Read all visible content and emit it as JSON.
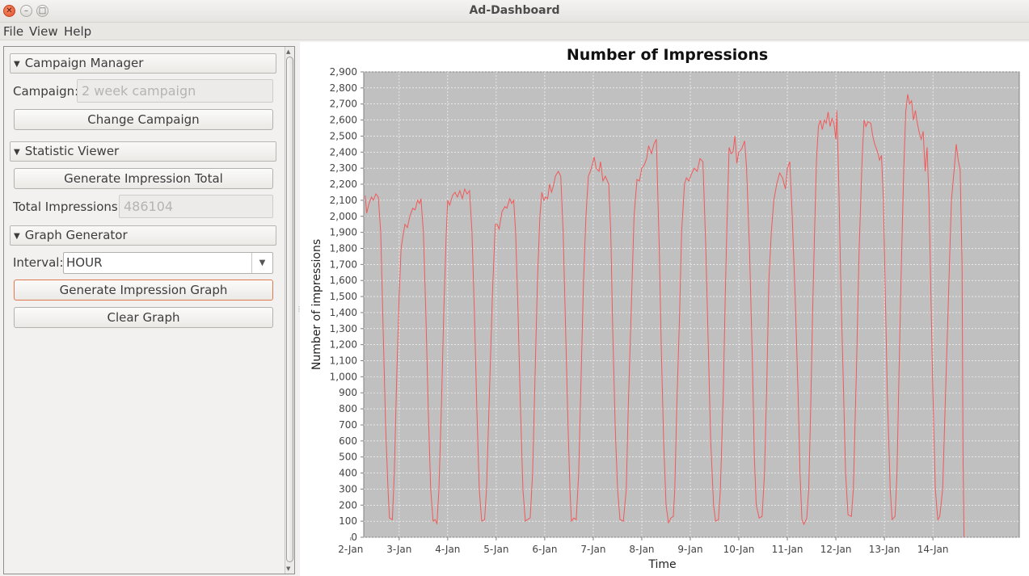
{
  "window": {
    "title": "Ad-Dashboard",
    "close_glyph": "✕",
    "min_glyph": "–",
    "max_glyph": "□"
  },
  "menu": [
    "File",
    "View",
    "Help"
  ],
  "campaign_manager": {
    "header": "Campaign Manager",
    "campaign_label": "Campaign:",
    "campaign_value": "2 week campaign",
    "change_button": "Change Campaign"
  },
  "statistic_viewer": {
    "header": "Statistic Viewer",
    "generate_button": "Generate Impression Total",
    "total_label": "Total Impressions:",
    "total_value": "486104"
  },
  "graph_generator": {
    "header": "Graph Generator",
    "interval_label": "Interval:",
    "interval_value": "HOUR",
    "generate_button": "Generate Impression Graph",
    "clear_button": "Clear Graph"
  },
  "colors": {
    "line": "#f05a5a",
    "plot_bg": "#c0c0c0",
    "grid": "#ffffff",
    "focus": "#e0794f"
  },
  "chart_data": {
    "type": "line",
    "title": "Number of Impressions",
    "xlabel": "Time",
    "ylabel": "Number of impressions",
    "ylim": [
      0,
      2900
    ],
    "ytick_step": 100,
    "x_unit": "day",
    "x_start_tick": "2-Jan",
    "xlim_days": [
      1.27,
      14.78
    ],
    "x_tick_labels": [
      "2-Jan",
      "3-Jan",
      "4-Jan",
      "5-Jan",
      "6-Jan",
      "7-Jan",
      "8-Jan",
      "9-Jan",
      "10-Jan",
      "11-Jan",
      "12-Jan",
      "13-Jan",
      "14-Jan"
    ],
    "grid": true,
    "legend": "none",
    "series": [
      {
        "values": [
          [
            1.3,
            2130
          ],
          [
            1.33,
            2020
          ],
          [
            1.38,
            2080
          ],
          [
            1.43,
            2120
          ],
          [
            1.47,
            2100
          ],
          [
            1.52,
            2140
          ],
          [
            1.57,
            2120
          ],
          [
            1.62,
            1900
          ],
          [
            1.67,
            1300
          ],
          [
            1.72,
            700
          ],
          [
            1.77,
            300
          ],
          [
            1.8,
            120
          ],
          [
            1.86,
            110
          ],
          [
            1.9,
            400
          ],
          [
            1.95,
            1000
          ],
          [
            2.0,
            1500
          ],
          [
            2.04,
            1800
          ],
          [
            2.08,
            1880
          ],
          [
            2.12,
            1950
          ],
          [
            2.17,
            1930
          ],
          [
            2.22,
            2000
          ],
          [
            2.28,
            2050
          ],
          [
            2.33,
            2040
          ],
          [
            2.38,
            2100
          ],
          [
            2.42,
            2080
          ],
          [
            2.45,
            2110
          ],
          [
            2.5,
            1900
          ],
          [
            2.55,
            1400
          ],
          [
            2.6,
            800
          ],
          [
            2.65,
            300
          ],
          [
            2.7,
            100
          ],
          [
            2.74,
            110
          ],
          [
            2.78,
            85
          ],
          [
            2.82,
            300
          ],
          [
            2.87,
            800
          ],
          [
            2.92,
            1400
          ],
          [
            2.97,
            1900
          ],
          [
            3.0,
            2100
          ],
          [
            3.04,
            2070
          ],
          [
            3.1,
            2130
          ],
          [
            3.15,
            2150
          ],
          [
            3.2,
            2120
          ],
          [
            3.25,
            2160
          ],
          [
            3.3,
            2110
          ],
          [
            3.35,
            2170
          ],
          [
            3.4,
            2140
          ],
          [
            3.45,
            2160
          ],
          [
            3.5,
            1900
          ],
          [
            3.55,
            1400
          ],
          [
            3.6,
            800
          ],
          [
            3.65,
            300
          ],
          [
            3.7,
            100
          ],
          [
            3.76,
            110
          ],
          [
            3.8,
            300
          ],
          [
            3.85,
            800
          ],
          [
            3.92,
            1500
          ],
          [
            3.98,
            1950
          ],
          [
            4.02,
            1950
          ],
          [
            4.06,
            1920
          ],
          [
            4.12,
            2030
          ],
          [
            4.18,
            2060
          ],
          [
            4.22,
            2050
          ],
          [
            4.28,
            2110
          ],
          [
            4.32,
            2080
          ],
          [
            4.36,
            2100
          ],
          [
            4.4,
            1900
          ],
          [
            4.45,
            1400
          ],
          [
            4.5,
            800
          ],
          [
            4.55,
            300
          ],
          [
            4.6,
            100
          ],
          [
            4.64,
            110
          ],
          [
            4.7,
            120
          ],
          [
            4.75,
            400
          ],
          [
            4.8,
            1000
          ],
          [
            4.85,
            1600
          ],
          [
            4.9,
            2000
          ],
          [
            4.94,
            2150
          ],
          [
            4.98,
            2100
          ],
          [
            5.02,
            2120
          ],
          [
            5.06,
            2110
          ],
          [
            5.1,
            2200
          ],
          [
            5.14,
            2150
          ],
          [
            5.18,
            2190
          ],
          [
            5.22,
            2250
          ],
          [
            5.28,
            2280
          ],
          [
            5.33,
            2250
          ],
          [
            5.38,
            1900
          ],
          [
            5.43,
            1300
          ],
          [
            5.48,
            700
          ],
          [
            5.52,
            300
          ],
          [
            5.55,
            100
          ],
          [
            5.6,
            120
          ],
          [
            5.65,
            110
          ],
          [
            5.7,
            400
          ],
          [
            5.75,
            1000
          ],
          [
            5.8,
            1600
          ],
          [
            5.85,
            2000
          ],
          [
            5.9,
            2250
          ],
          [
            5.94,
            2280
          ],
          [
            5.98,
            2320
          ],
          [
            6.02,
            2370
          ],
          [
            6.06,
            2300
          ],
          [
            6.12,
            2280
          ],
          [
            6.15,
            2340
          ],
          [
            6.2,
            2220
          ],
          [
            6.25,
            2250
          ],
          [
            6.32,
            2200
          ],
          [
            6.36,
            1900
          ],
          [
            6.4,
            1300
          ],
          [
            6.45,
            700
          ],
          [
            6.5,
            300
          ],
          [
            6.55,
            110
          ],
          [
            6.62,
            100
          ],
          [
            6.68,
            300
          ],
          [
            6.72,
            800
          ],
          [
            6.78,
            1400
          ],
          [
            6.84,
            2000
          ],
          [
            6.9,
            2230
          ],
          [
            6.95,
            2220
          ],
          [
            7.0,
            2300
          ],
          [
            7.05,
            2320
          ],
          [
            7.1,
            2360
          ],
          [
            7.14,
            2440
          ],
          [
            7.2,
            2390
          ],
          [
            7.25,
            2450
          ],
          [
            7.3,
            2480
          ],
          [
            7.32,
            2250
          ],
          [
            7.36,
            1800
          ],
          [
            7.4,
            1200
          ],
          [
            7.45,
            600
          ],
          [
            7.5,
            200
          ],
          [
            7.55,
            90
          ],
          [
            7.6,
            120
          ],
          [
            7.65,
            130
          ],
          [
            7.68,
            300
          ],
          [
            7.72,
            800
          ],
          [
            7.78,
            1400
          ],
          [
            7.82,
            1900
          ],
          [
            7.88,
            2200
          ],
          [
            7.92,
            2240
          ],
          [
            7.97,
            2220
          ],
          [
            8.02,
            2260
          ],
          [
            8.08,
            2300
          ],
          [
            8.14,
            2280
          ],
          [
            8.2,
            2360
          ],
          [
            8.26,
            2340
          ],
          [
            8.32,
            1800
          ],
          [
            8.37,
            1200
          ],
          [
            8.42,
            600
          ],
          [
            8.48,
            200
          ],
          [
            8.52,
            100
          ],
          [
            8.58,
            110
          ],
          [
            8.62,
            300
          ],
          [
            8.68,
            900
          ],
          [
            8.72,
            1500
          ],
          [
            8.76,
            2000
          ],
          [
            8.8,
            2430
          ],
          [
            8.84,
            2390
          ],
          [
            8.88,
            2400
          ],
          [
            8.92,
            2500
          ],
          [
            8.96,
            2330
          ],
          [
            9.0,
            2400
          ],
          [
            9.06,
            2420
          ],
          [
            9.12,
            2470
          ],
          [
            9.16,
            2300
          ],
          [
            9.22,
            1800
          ],
          [
            9.28,
            1100
          ],
          [
            9.32,
            500
          ],
          [
            9.36,
            200
          ],
          [
            9.42,
            120
          ],
          [
            9.48,
            130
          ],
          [
            9.53,
            400
          ],
          [
            9.58,
            1000
          ],
          [
            9.62,
            1600
          ],
          [
            9.67,
            1900
          ],
          [
            9.72,
            2100
          ],
          [
            9.78,
            2200
          ],
          [
            9.84,
            2270
          ],
          [
            9.9,
            2240
          ],
          [
            9.96,
            2170
          ],
          [
            10.0,
            2300
          ],
          [
            10.05,
            2340
          ],
          [
            10.1,
            2000
          ],
          [
            10.16,
            1500
          ],
          [
            10.22,
            900
          ],
          [
            10.26,
            400
          ],
          [
            10.3,
            110
          ],
          [
            10.34,
            80
          ],
          [
            10.4,
            120
          ],
          [
            10.44,
            300
          ],
          [
            10.48,
            800
          ],
          [
            10.52,
            1400
          ],
          [
            10.56,
            1900
          ],
          [
            10.6,
            2350
          ],
          [
            10.64,
            2560
          ],
          [
            10.68,
            2600
          ],
          [
            10.72,
            2540
          ],
          [
            10.76,
            2600
          ],
          [
            10.8,
            2580
          ],
          [
            10.84,
            2650
          ],
          [
            10.88,
            2560
          ],
          [
            10.92,
            2610
          ],
          [
            10.96,
            2580
          ],
          [
            11.0,
            2480
          ],
          [
            11.02,
            2660
          ],
          [
            11.06,
            2200
          ],
          [
            11.1,
            1600
          ],
          [
            11.15,
            1000
          ],
          [
            11.2,
            400
          ],
          [
            11.25,
            140
          ],
          [
            11.32,
            130
          ],
          [
            11.36,
            300
          ],
          [
            11.42,
            1000
          ],
          [
            11.48,
            1800
          ],
          [
            11.54,
            2350
          ],
          [
            11.58,
            2600
          ],
          [
            11.62,
            2560
          ],
          [
            11.66,
            2590
          ],
          [
            11.72,
            2580
          ],
          [
            11.76,
            2500
          ],
          [
            11.8,
            2450
          ],
          [
            11.86,
            2400
          ],
          [
            11.9,
            2350
          ],
          [
            11.94,
            2380
          ],
          [
            11.98,
            2100
          ],
          [
            12.02,
            1500
          ],
          [
            12.06,
            900
          ],
          [
            12.12,
            300
          ],
          [
            12.16,
            110
          ],
          [
            12.22,
            130
          ],
          [
            12.26,
            400
          ],
          [
            12.3,
            1000
          ],
          [
            12.35,
            1700
          ],
          [
            12.4,
            2300
          ],
          [
            12.44,
            2650
          ],
          [
            12.48,
            2760
          ],
          [
            12.52,
            2700
          ],
          [
            12.56,
            2720
          ],
          [
            12.6,
            2600
          ],
          [
            12.64,
            2660
          ],
          [
            12.68,
            2580
          ],
          [
            12.72,
            2520
          ],
          [
            12.76,
            2480
          ],
          [
            12.8,
            2530
          ],
          [
            12.84,
            2280
          ],
          [
            12.88,
            2430
          ],
          [
            12.92,
            2100
          ],
          [
            12.96,
            1500
          ],
          [
            13.0,
            900
          ],
          [
            13.05,
            300
          ],
          [
            13.1,
            110
          ],
          [
            13.14,
            130
          ],
          [
            13.2,
            300
          ],
          [
            13.25,
            800
          ],
          [
            13.32,
            1500
          ],
          [
            13.38,
            2100
          ],
          [
            13.44,
            2300
          ],
          [
            13.48,
            2450
          ],
          [
            13.52,
            2350
          ],
          [
            13.56,
            2290
          ],
          [
            13.6,
            1700
          ],
          [
            13.62,
            500
          ],
          [
            13.64,
            0
          ]
        ]
      }
    ]
  }
}
